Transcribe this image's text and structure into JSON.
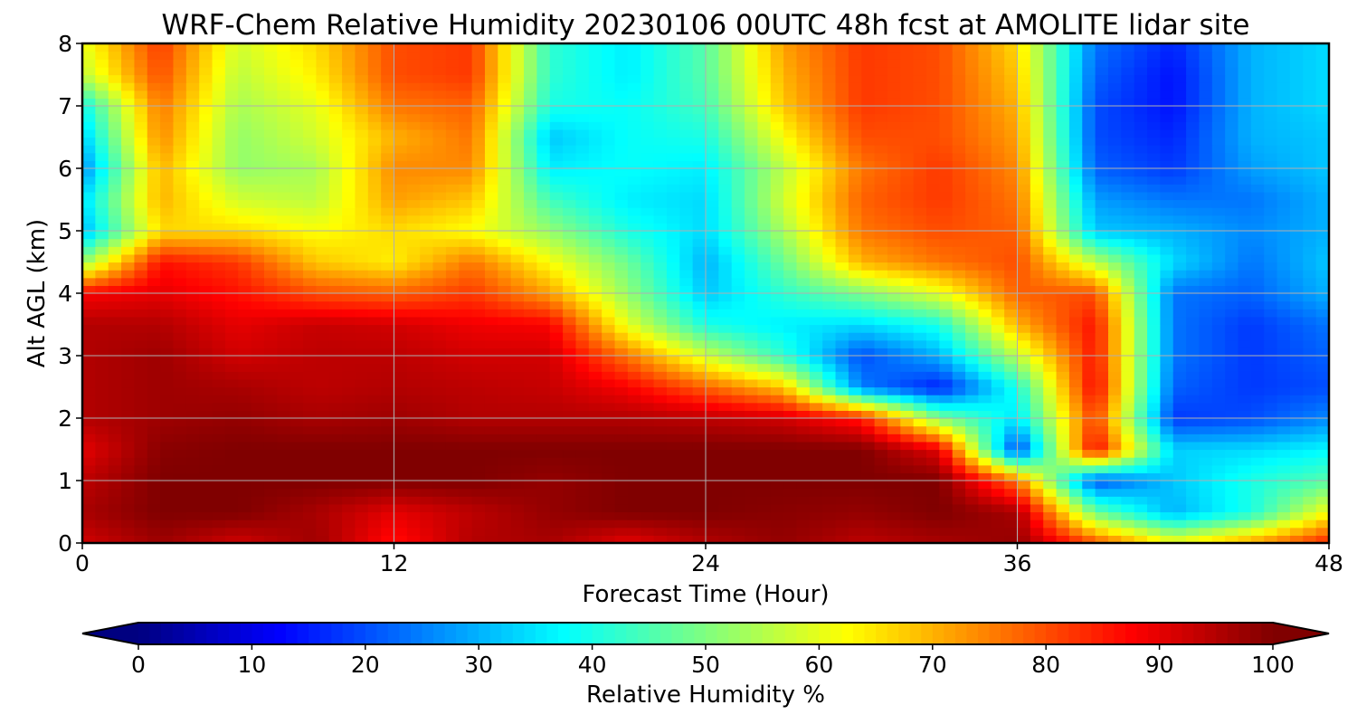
{
  "chart_data": {
    "type": "heatmap",
    "title": "WRF-Chem Relative Humidity 20230106 00UTC 48h fcst at AMOLITE lidar site",
    "xlabel": "Forecast Time (Hour)",
    "ylabel": "Alt AGL (km)",
    "xlim": [
      0,
      48
    ],
    "ylim": [
      0,
      8
    ],
    "xticks": [
      0,
      12,
      24,
      36,
      48
    ],
    "yticks": [
      0,
      1,
      2,
      3,
      4,
      5,
      6,
      7,
      8
    ],
    "grid": true,
    "colormap": "jet",
    "colorbar": {
      "label": "Relative Humidity %",
      "min": 0,
      "max": 100,
      "ticks": [
        0,
        10,
        20,
        30,
        40,
        50,
        60,
        70,
        80,
        90,
        100
      ],
      "extend": "both",
      "orientation": "horizontal"
    },
    "x": [
      0,
      3,
      6,
      9,
      12,
      15,
      18,
      21,
      24,
      27,
      30,
      33,
      36,
      39,
      42,
      45,
      48
    ],
    "y": [
      0,
      0.5,
      1,
      1.5,
      2,
      2.5,
      3,
      3.5,
      4,
      4.5,
      5,
      5.5,
      6,
      6.5,
      7,
      7.5,
      8
    ],
    "z": [
      [
        92,
        97,
        92,
        97,
        86,
        95,
        96,
        90,
        95,
        98,
        94,
        96,
        98,
        80,
        62,
        72,
        85
      ],
      [
        96,
        100,
        100,
        96,
        90,
        94,
        98,
        100,
        100,
        99,
        98,
        100,
        96,
        48,
        30,
        40,
        62
      ],
      [
        94,
        100,
        100,
        100,
        100,
        100,
        98,
        100,
        100,
        100,
        100,
        100,
        76,
        20,
        32,
        40,
        46
      ],
      [
        90,
        99,
        100,
        100,
        100,
        100,
        100,
        100,
        100,
        100,
        100,
        90,
        18,
        88,
        33,
        34,
        37
      ],
      [
        95,
        97,
        98,
        96,
        97,
        95,
        95,
        95,
        94,
        92,
        85,
        50,
        35,
        82,
        18,
        20,
        26
      ],
      [
        95,
        97,
        96,
        94,
        95,
        94,
        93,
        88,
        78,
        68,
        25,
        15,
        40,
        88,
        22,
        18,
        20
      ],
      [
        95,
        97,
        92,
        94,
        94,
        92,
        92,
        76,
        58,
        42,
        20,
        30,
        56,
        86,
        24,
        18,
        22
      ],
      [
        95,
        95,
        90,
        93,
        92,
        89,
        88,
        60,
        40,
        36,
        34,
        40,
        70,
        86,
        24,
        18,
        24
      ],
      [
        88,
        90,
        86,
        80,
        78,
        82,
        72,
        52,
        32,
        42,
        50,
        60,
        78,
        80,
        24,
        22,
        30
      ],
      [
        52,
        86,
        82,
        68,
        64,
        76,
        62,
        48,
        30,
        48,
        70,
        76,
        80,
        56,
        34,
        24,
        32
      ],
      [
        30,
        66,
        66,
        62,
        66,
        62,
        52,
        40,
        34,
        54,
        76,
        80,
        78,
        32,
        30,
        26,
        30
      ],
      [
        34,
        70,
        58,
        56,
        72,
        68,
        44,
        36,
        34,
        58,
        78,
        82,
        76,
        28,
        24,
        24,
        30
      ],
      [
        26,
        70,
        52,
        54,
        74,
        74,
        36,
        38,
        36,
        56,
        76,
        82,
        74,
        22,
        18,
        28,
        32
      ],
      [
        32,
        74,
        52,
        58,
        70,
        76,
        32,
        38,
        40,
        62,
        80,
        80,
        72,
        20,
        16,
        30,
        32
      ],
      [
        38,
        76,
        54,
        60,
        76,
        78,
        40,
        38,
        44,
        68,
        82,
        80,
        70,
        20,
        14,
        30,
        34
      ],
      [
        56,
        80,
        56,
        64,
        80,
        82,
        42,
        36,
        46,
        70,
        82,
        80,
        68,
        22,
        14,
        30,
        34
      ],
      [
        60,
        82,
        58,
        66,
        80,
        82,
        42,
        36,
        46,
        72,
        82,
        80,
        66,
        24,
        16,
        30,
        34
      ]
    ]
  }
}
